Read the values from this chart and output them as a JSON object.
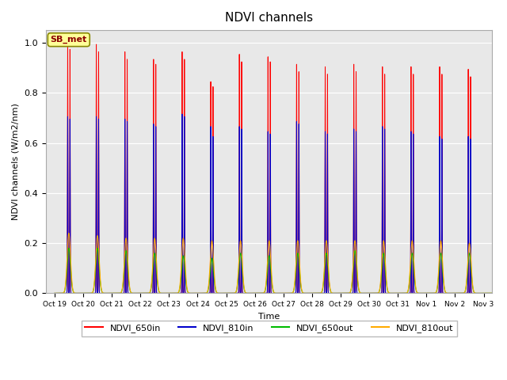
{
  "title": "NDVI channels",
  "xlabel": "Time",
  "ylabel": "NDVI channels (W/m2/nm)",
  "annotation": "SB_met",
  "ylim": [
    0.0,
    1.05
  ],
  "colors": {
    "NDVI_650in": "#ff0000",
    "NDVI_810in": "#0000cc",
    "NDVI_650out": "#00bb00",
    "NDVI_810out": "#ffaa00"
  },
  "legend_labels": [
    "NDVI_650in",
    "NDVI_810in",
    "NDVI_650out",
    "NDVI_810out"
  ],
  "xtick_labels": [
    "Oct 19",
    "Oct 20",
    "Oct 21",
    "Oct 22",
    "Oct 23",
    "Oct 24",
    "Oct 25",
    "Oct 26",
    "Oct 27",
    "Oct 28",
    "Oct 29",
    "Oct 30",
    "Oct 31",
    "Nov 1",
    "Nov 2",
    "Nov 3"
  ],
  "num_days": 16,
  "peak_650in_a": [
    1.0,
    1.0,
    0.97,
    0.94,
    0.97,
    0.85,
    0.96,
    0.95,
    0.92,
    0.91,
    0.92,
    0.91,
    0.91,
    0.91,
    0.9,
    0.88
  ],
  "peak_650in_b": [
    0.98,
    0.97,
    0.94,
    0.92,
    0.94,
    0.83,
    0.93,
    0.93,
    0.89,
    0.88,
    0.89,
    0.88,
    0.88,
    0.88,
    0.87,
    0.85
  ],
  "peak_810in_a": [
    0.71,
    0.71,
    0.7,
    0.68,
    0.72,
    0.67,
    0.67,
    0.65,
    0.69,
    0.65,
    0.66,
    0.67,
    0.65,
    0.63,
    0.63,
    0.62
  ],
  "peak_810in_b": [
    0.7,
    0.7,
    0.69,
    0.67,
    0.71,
    0.63,
    0.66,
    0.64,
    0.68,
    0.64,
    0.65,
    0.66,
    0.64,
    0.62,
    0.62,
    0.61
  ],
  "peak_650out": [
    0.18,
    0.18,
    0.17,
    0.16,
    0.15,
    0.14,
    0.16,
    0.15,
    0.16,
    0.16,
    0.17,
    0.16,
    0.16,
    0.16,
    0.16,
    0.16
  ],
  "peak_810out": [
    0.24,
    0.23,
    0.22,
    0.22,
    0.22,
    0.21,
    0.21,
    0.21,
    0.21,
    0.21,
    0.21,
    0.21,
    0.21,
    0.21,
    0.2,
    0.2
  ],
  "plot_background": "#e8e8e8",
  "fig_background": "#ffffff"
}
